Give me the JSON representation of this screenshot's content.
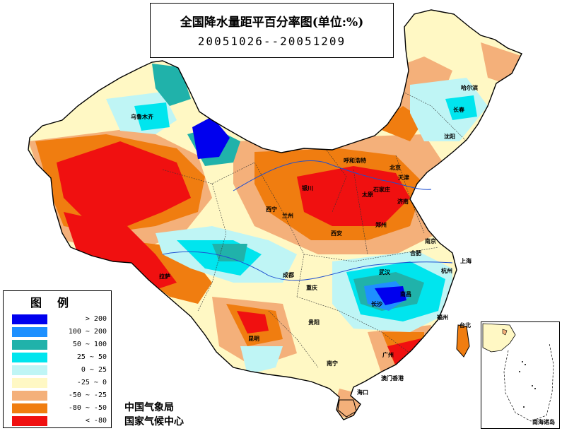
{
  "title": {
    "main": "全国降水量距平百分率图(单位:%)",
    "date_range": "20051026--20051209"
  },
  "legend": {
    "title": "图例",
    "items": [
      {
        "label": "> 200",
        "color": "#0000ee"
      },
      {
        "label": "100 ~ 200",
        "color": "#1e90ff"
      },
      {
        "label": "50 ~ 100",
        "color": "#20b2aa"
      },
      {
        "label": "25 ~ 50",
        "color": "#00e5ee"
      },
      {
        "label": "0 ~ 25",
        "color": "#bff5f5"
      },
      {
        "label": "-25 ~ 0",
        "color": "#fff8c4"
      },
      {
        "label": "-50 ~ -25",
        "color": "#f4b07a"
      },
      {
        "label": "-80 ~ -50",
        "color": "#f07d10"
      },
      {
        "label": "< -80",
        "color": "#f01010"
      }
    ]
  },
  "credits": {
    "line1": "中国气象局",
    "line2": "国家气候中心"
  },
  "inset": {
    "label": "南海诸岛"
  },
  "cities": [
    {
      "id": "urumqi",
      "name": "乌鲁木齐"
    },
    {
      "id": "harbin",
      "name": "哈尔滨"
    },
    {
      "id": "changchun",
      "name": "长春"
    },
    {
      "id": "shenyang",
      "name": "沈阳"
    },
    {
      "id": "hohhot",
      "name": "呼和浩特"
    },
    {
      "id": "beijing",
      "name": "北京"
    },
    {
      "id": "tianjin",
      "name": "天津"
    },
    {
      "id": "shijiazhuang",
      "name": "石家庄"
    },
    {
      "id": "taiyuan",
      "name": "太原"
    },
    {
      "id": "jinan",
      "name": "济南"
    },
    {
      "id": "yinchuan",
      "name": "银川"
    },
    {
      "id": "xining",
      "name": "西宁"
    },
    {
      "id": "lanzhou",
      "name": "兰州"
    },
    {
      "id": "xian",
      "name": "西安"
    },
    {
      "id": "zhengzhou",
      "name": "郑州"
    },
    {
      "id": "nanjing",
      "name": "南京"
    },
    {
      "id": "hefei",
      "name": "合肥"
    },
    {
      "id": "shanghai",
      "name": "上海"
    },
    {
      "id": "wuhan",
      "name": "武汉"
    },
    {
      "id": "hangzhou",
      "name": "杭州"
    },
    {
      "id": "lhasa",
      "name": "拉萨"
    },
    {
      "id": "chengdu",
      "name": "成都"
    },
    {
      "id": "chongqing",
      "name": "重庆"
    },
    {
      "id": "changsha",
      "name": "长沙"
    },
    {
      "id": "nanchang",
      "name": "南昌"
    },
    {
      "id": "fuzhou",
      "name": "福州"
    },
    {
      "id": "taipei",
      "name": "台北"
    },
    {
      "id": "guiyang",
      "name": "贵阳"
    },
    {
      "id": "kunming",
      "name": "昆明"
    },
    {
      "id": "nanning",
      "name": "南宁"
    },
    {
      "id": "guangzhou",
      "name": "广州"
    },
    {
      "id": "aomen_xianggang",
      "name": "澳门香港"
    },
    {
      "id": "haikou",
      "name": "海口"
    }
  ]
}
